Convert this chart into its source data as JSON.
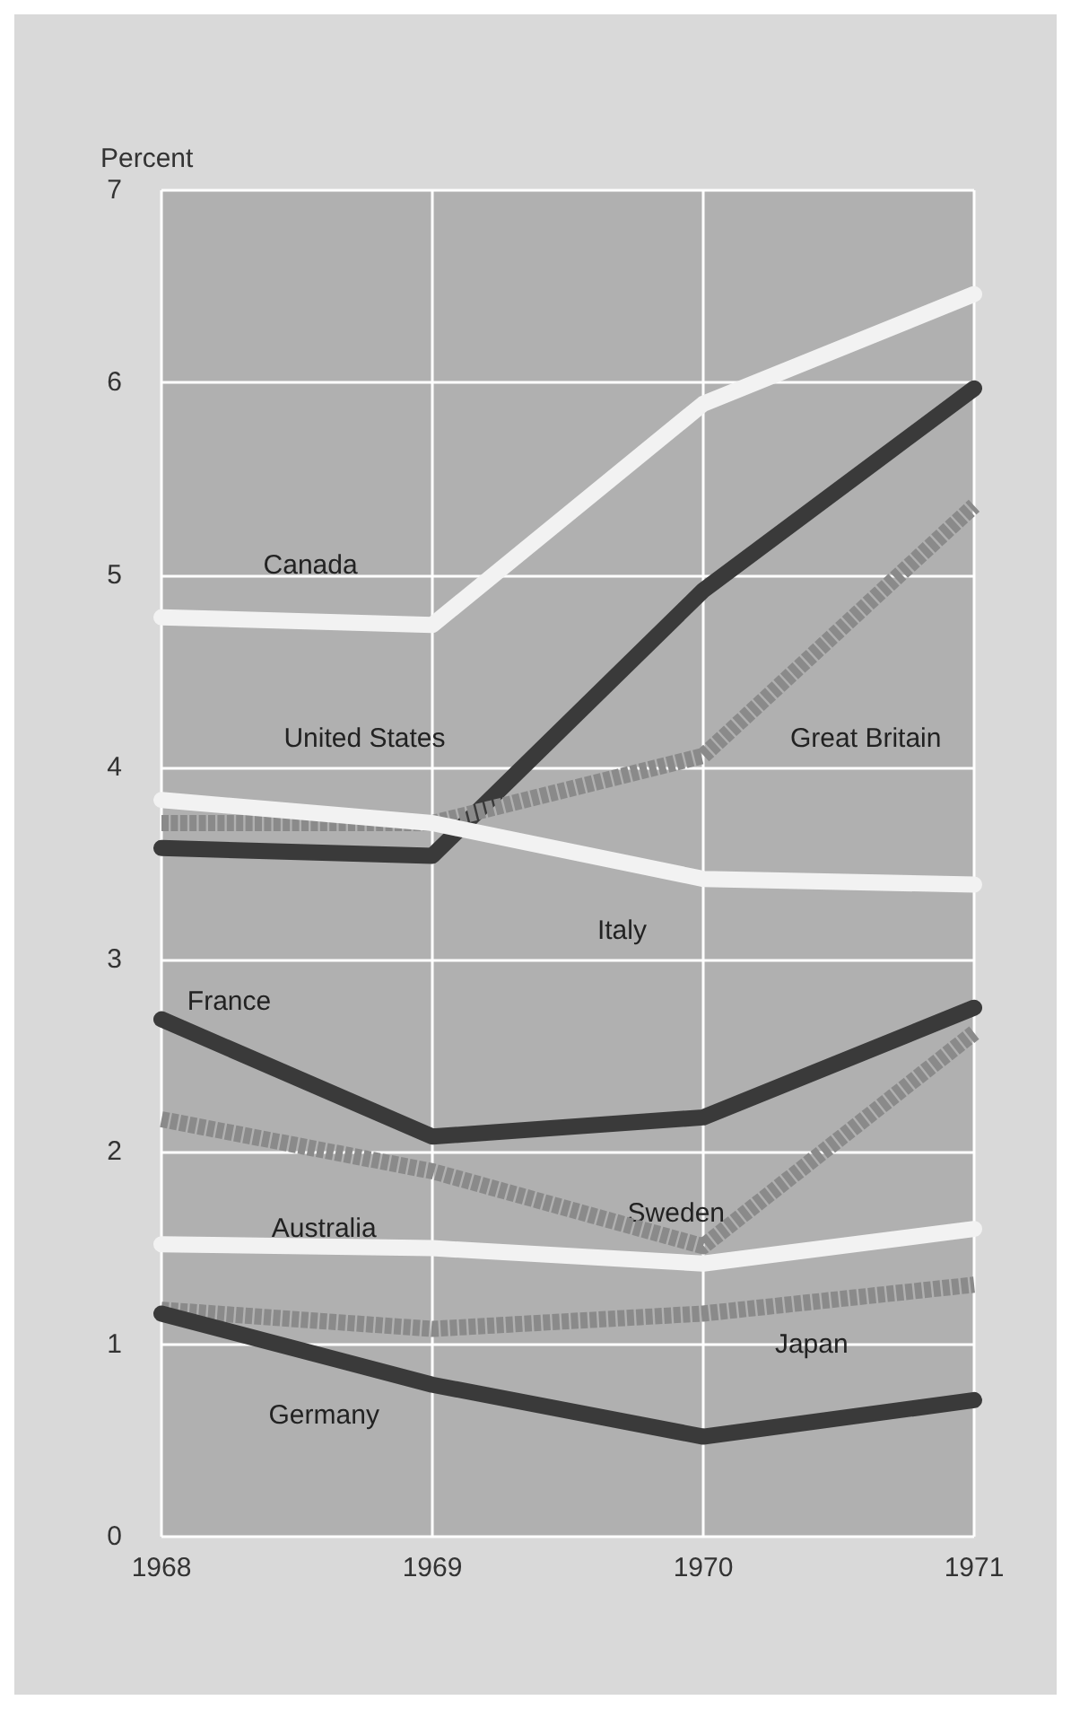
{
  "chart_data": {
    "type": "line",
    "ylabel": "Percent",
    "x": [
      1968,
      1969,
      1970,
      1971
    ],
    "xlim": [
      1968,
      1971
    ],
    "xticks": [
      1968,
      1969,
      1970,
      1971
    ],
    "ylim": [
      0,
      7
    ],
    "yticks": [
      0,
      1,
      2,
      3,
      4,
      5,
      6,
      7
    ],
    "grid": true,
    "legend": false,
    "marker": "none",
    "line_style": "solid",
    "series": [
      {
        "name": "Canada",
        "color": "#f2f2f2",
        "values": [
          4.78,
          4.74,
          5.89,
          6.46
        ]
      },
      {
        "name": "United States",
        "color": "#3a3a3a",
        "values": [
          3.58,
          3.54,
          4.92,
          5.97
        ]
      },
      {
        "name": "Great Britain",
        "color": "#8a8a8a",
        "line_style": "dashed",
        "values": [
          3.71,
          3.71,
          4.06,
          5.36
        ]
      },
      {
        "name": "Italy",
        "color": "#f2f2f2",
        "values": [
          3.83,
          3.71,
          3.42,
          3.39
        ]
      },
      {
        "name": "France",
        "color": "#3a3a3a",
        "values": [
          2.69,
          2.08,
          2.18,
          2.75
        ]
      },
      {
        "name": "Sweden",
        "color": "#8a8a8a",
        "line_style": "dashed",
        "values": [
          2.17,
          1.9,
          1.51,
          2.62
        ]
      },
      {
        "name": "Australia",
        "color": "#f2f2f2",
        "values": [
          1.52,
          1.5,
          1.42,
          1.6
        ]
      },
      {
        "name": "Japan",
        "color": "#8a8a8a",
        "line_style": "dashed",
        "values": [
          1.18,
          1.08,
          1.16,
          1.31
        ]
      },
      {
        "name": "Germany",
        "color": "#3a3a3a",
        "values": [
          1.16,
          0.79,
          0.52,
          0.71
        ]
      }
    ]
  }
}
